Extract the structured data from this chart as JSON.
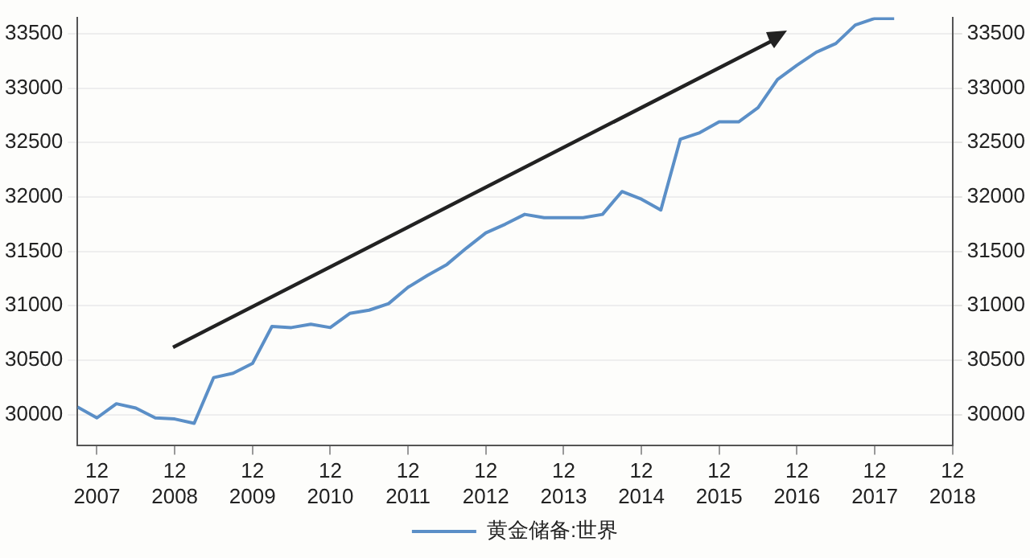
{
  "chart_data": {
    "type": "line",
    "x": [
      "2007-09",
      "2007-12",
      "2008-03",
      "2008-06",
      "2008-09",
      "2008-12",
      "2009-03",
      "2009-06",
      "2009-09",
      "2009-12",
      "2010-03",
      "2010-06",
      "2010-09",
      "2010-12",
      "2011-03",
      "2011-06",
      "2011-09",
      "2011-12",
      "2012-03",
      "2012-06",
      "2012-09",
      "2012-12",
      "2013-03",
      "2013-06",
      "2013-09",
      "2013-12",
      "2014-03",
      "2014-06",
      "2014-09",
      "2014-12",
      "2015-03",
      "2015-06",
      "2015-09",
      "2015-12",
      "2016-03",
      "2016-06",
      "2016-09",
      "2016-12",
      "2017-03",
      "2017-06",
      "2017-09",
      "2017-12",
      "2018-03"
    ],
    "series": [
      {
        "name": "黄金储备:世界",
        "color": "#5b8fc7",
        "values": [
          30070,
          29970,
          30100,
          30060,
          29970,
          29960,
          29920,
          30340,
          30380,
          30470,
          30810,
          30800,
          30830,
          30800,
          30930,
          30960,
          31020,
          31170,
          31280,
          31380,
          31530,
          31670,
          31750,
          31840,
          31810,
          31810,
          31810,
          31840,
          32050,
          31980,
          31880,
          32530,
          32590,
          32690,
          32690,
          32820,
          33080,
          33210,
          33330,
          33410,
          33580,
          33640,
          33640
        ]
      }
    ],
    "xlim": [
      "2007-09",
      "2018-12"
    ],
    "xticks": [
      {
        "value": "2007-12",
        "label": "12\n2007"
      },
      {
        "value": "2008-12",
        "label": "12\n2008"
      },
      {
        "value": "2009-12",
        "label": "12\n2009"
      },
      {
        "value": "2010-12",
        "label": "12\n2010"
      },
      {
        "value": "2011-12",
        "label": "12\n2011"
      },
      {
        "value": "2012-12",
        "label": "12\n2012"
      },
      {
        "value": "2013-12",
        "label": "12\n2013"
      },
      {
        "value": "2014-12",
        "label": "12\n2014"
      },
      {
        "value": "2015-12",
        "label": "12\n2015"
      },
      {
        "value": "2016-12",
        "label": "12\n2016"
      },
      {
        "value": "2017-12",
        "label": "12\n2017"
      },
      {
        "value": "2018-12",
        "label": "12\n2018"
      }
    ],
    "ylim": [
      29720,
      33650
    ],
    "yticks": [
      30000,
      30500,
      31000,
      31500,
      32000,
      32500,
      33000,
      33500
    ],
    "y2lim": [
      29720,
      33650
    ],
    "y2ticks": [
      30000,
      30500,
      31000,
      31500,
      32000,
      32500,
      33000,
      33500
    ],
    "grid": "y",
    "legend": "bottom",
    "marker": "none",
    "line_style": "solid"
  }
}
